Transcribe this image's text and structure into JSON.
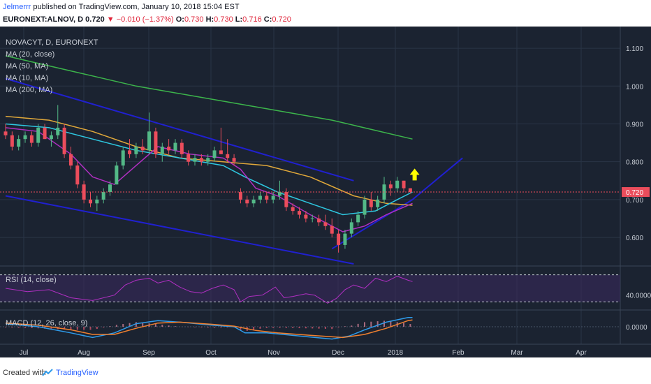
{
  "header": {
    "author": "Jelmerrr",
    "published_text": "published on TradingView.com, January 10, 2018 15:04 EST",
    "symbol_line": "EURONEXT:ALNOV, D",
    "price": "0.720",
    "change": "−0.010 (−1.37%)",
    "ohlc": {
      "o_label": "O:",
      "o": "0.730",
      "h_label": "H:",
      "h": "0.730",
      "l_label": "L:",
      "l": "0.716",
      "c_label": "C:",
      "c": "0.720"
    }
  },
  "legend": {
    "title": "NOVACYT, D, EURONEXT",
    "items": [
      "MA (20, close)",
      "MA (50, MA)",
      "MA (10, MA)",
      "MA (200, MA)"
    ]
  },
  "rsi_label": "RSI (14, close)",
  "macd_label": "MACD (12, 26, close, 9)",
  "footer": {
    "created": "Created with",
    "brand": "TradingView"
  },
  "colors": {
    "bg": "#1b2331",
    "grid": "#2a3446",
    "up": "#53b987",
    "down": "#eb4d5c",
    "ma20": "#2ec7e0",
    "ma50": "#e0a83a",
    "ma10": "#b02fc2",
    "ma200": "#3cb44b",
    "channel": "#2020d0",
    "arrow": "#ffff00",
    "rsi": "#b02fc2",
    "macd": "#2e9bea",
    "signal": "#f08030"
  },
  "chart_data": [
    {
      "type": "candlestick",
      "title": "NOVACYT, D, EURONEXT",
      "x_labels": [
        "Jul",
        "Aug",
        "Sep",
        "Oct",
        "Nov",
        "Dec",
        "2018",
        "Feb",
        "Mar",
        "Apr"
      ],
      "y_ticks": [
        "1.100",
        "1.000",
        "0.900",
        "0.800",
        "0.700",
        "0.600"
      ],
      "ylim": [
        0.53,
        1.15
      ],
      "last_price_label": "0.720",
      "last_price": 0.72,
      "candles": [
        {
          "d": 0,
          "o": 0.88,
          "h": 0.9,
          "l": 0.86,
          "c": 0.87
        },
        {
          "d": 3,
          "o": 0.87,
          "h": 0.88,
          "l": 0.83,
          "c": 0.84
        },
        {
          "d": 6,
          "o": 0.84,
          "h": 0.87,
          "l": 0.83,
          "c": 0.86
        },
        {
          "d": 9,
          "o": 0.86,
          "h": 0.88,
          "l": 0.85,
          "c": 0.87
        },
        {
          "d": 12,
          "o": 0.87,
          "h": 0.88,
          "l": 0.84,
          "c": 0.85
        },
        {
          "d": 15,
          "o": 0.85,
          "h": 0.9,
          "l": 0.84,
          "c": 0.89
        },
        {
          "d": 18,
          "o": 0.89,
          "h": 0.9,
          "l": 0.86,
          "c": 0.86
        },
        {
          "d": 21,
          "o": 0.86,
          "h": 0.88,
          "l": 0.84,
          "c": 0.87
        },
        {
          "d": 24,
          "o": 0.87,
          "h": 0.95,
          "l": 0.86,
          "c": 0.89
        },
        {
          "d": 27,
          "o": 0.89,
          "h": 0.9,
          "l": 0.81,
          "c": 0.82
        },
        {
          "d": 30,
          "o": 0.82,
          "h": 0.84,
          "l": 0.78,
          "c": 0.79
        },
        {
          "d": 33,
          "o": 0.79,
          "h": 0.8,
          "l": 0.73,
          "c": 0.74
        },
        {
          "d": 36,
          "o": 0.74,
          "h": 0.75,
          "l": 0.69,
          "c": 0.7
        },
        {
          "d": 39,
          "o": 0.7,
          "h": 0.72,
          "l": 0.68,
          "c": 0.69
        },
        {
          "d": 42,
          "o": 0.69,
          "h": 0.71,
          "l": 0.67,
          "c": 0.7
        },
        {
          "d": 45,
          "o": 0.7,
          "h": 0.73,
          "l": 0.69,
          "c": 0.72
        },
        {
          "d": 48,
          "o": 0.72,
          "h": 0.75,
          "l": 0.71,
          "c": 0.74
        },
        {
          "d": 51,
          "o": 0.74,
          "h": 0.8,
          "l": 0.74,
          "c": 0.79
        },
        {
          "d": 54,
          "o": 0.79,
          "h": 0.84,
          "l": 0.78,
          "c": 0.83
        },
        {
          "d": 57,
          "o": 0.83,
          "h": 0.86,
          "l": 0.81,
          "c": 0.82
        },
        {
          "d": 60,
          "o": 0.82,
          "h": 0.85,
          "l": 0.81,
          "c": 0.84
        },
        {
          "d": 63,
          "o": 0.84,
          "h": 0.86,
          "l": 0.82,
          "c": 0.83
        },
        {
          "d": 66,
          "o": 0.83,
          "h": 0.93,
          "l": 0.82,
          "c": 0.88
        },
        {
          "d": 69,
          "o": 0.88,
          "h": 0.89,
          "l": 0.81,
          "c": 0.82
        },
        {
          "d": 72,
          "o": 0.82,
          "h": 0.85,
          "l": 0.8,
          "c": 0.84
        },
        {
          "d": 75,
          "o": 0.84,
          "h": 0.86,
          "l": 0.82,
          "c": 0.83
        },
        {
          "d": 78,
          "o": 0.83,
          "h": 0.86,
          "l": 0.82,
          "c": 0.85
        },
        {
          "d": 81,
          "o": 0.85,
          "h": 0.86,
          "l": 0.81,
          "c": 0.82
        },
        {
          "d": 84,
          "o": 0.82,
          "h": 0.83,
          "l": 0.79,
          "c": 0.8
        },
        {
          "d": 87,
          "o": 0.8,
          "h": 0.82,
          "l": 0.79,
          "c": 0.81
        },
        {
          "d": 90,
          "o": 0.81,
          "h": 0.82,
          "l": 0.79,
          "c": 0.8
        },
        {
          "d": 93,
          "o": 0.8,
          "h": 0.82,
          "l": 0.79,
          "c": 0.81
        },
        {
          "d": 96,
          "o": 0.81,
          "h": 0.84,
          "l": 0.8,
          "c": 0.83
        },
        {
          "d": 99,
          "o": 0.83,
          "h": 0.89,
          "l": 0.82,
          "c": 0.82
        },
        {
          "d": 102,
          "o": 0.82,
          "h": 0.86,
          "l": 0.8,
          "c": 0.81
        },
        {
          "d": 105,
          "o": 0.81,
          "h": 0.82,
          "l": 0.79,
          "c": 0.8
        },
        {
          "d": 108,
          "o": 0.72,
          "h": 0.73,
          "l": 0.69,
          "c": 0.7
        },
        {
          "d": 111,
          "o": 0.7,
          "h": 0.71,
          "l": 0.68,
          "c": 0.69
        },
        {
          "d": 114,
          "o": 0.69,
          "h": 0.71,
          "l": 0.68,
          "c": 0.7
        },
        {
          "d": 117,
          "o": 0.7,
          "h": 0.72,
          "l": 0.69,
          "c": 0.71
        },
        {
          "d": 120,
          "o": 0.71,
          "h": 0.72,
          "l": 0.69,
          "c": 0.7
        },
        {
          "d": 123,
          "o": 0.7,
          "h": 0.72,
          "l": 0.69,
          "c": 0.71
        },
        {
          "d": 126,
          "o": 0.71,
          "h": 0.75,
          "l": 0.7,
          "c": 0.72
        },
        {
          "d": 129,
          "o": 0.72,
          "h": 0.73,
          "l": 0.67,
          "c": 0.68
        },
        {
          "d": 132,
          "o": 0.68,
          "h": 0.69,
          "l": 0.66,
          "c": 0.67
        },
        {
          "d": 135,
          "o": 0.67,
          "h": 0.68,
          "l": 0.65,
          "c": 0.66
        },
        {
          "d": 138,
          "o": 0.66,
          "h": 0.67,
          "l": 0.64,
          "c": 0.65
        },
        {
          "d": 141,
          "o": 0.65,
          "h": 0.66,
          "l": 0.64,
          "c": 0.65
        },
        {
          "d": 144,
          "o": 0.65,
          "h": 0.66,
          "l": 0.63,
          "c": 0.64
        },
        {
          "d": 147,
          "o": 0.64,
          "h": 0.66,
          "l": 0.62,
          "c": 0.63
        },
        {
          "d": 150,
          "o": 0.63,
          "h": 0.65,
          "l": 0.6,
          "c": 0.61
        },
        {
          "d": 153,
          "o": 0.61,
          "h": 0.62,
          "l": 0.56,
          "c": 0.58
        },
        {
          "d": 156,
          "o": 0.58,
          "h": 0.62,
          "l": 0.57,
          "c": 0.61
        },
        {
          "d": 159,
          "o": 0.61,
          "h": 0.65,
          "l": 0.6,
          "c": 0.64
        },
        {
          "d": 162,
          "o": 0.64,
          "h": 0.67,
          "l": 0.63,
          "c": 0.66
        },
        {
          "d": 165,
          "o": 0.66,
          "h": 0.71,
          "l": 0.65,
          "c": 0.7
        },
        {
          "d": 168,
          "o": 0.7,
          "h": 0.72,
          "l": 0.67,
          "c": 0.68
        },
        {
          "d": 171,
          "o": 0.68,
          "h": 0.71,
          "l": 0.67,
          "c": 0.7
        },
        {
          "d": 174,
          "o": 0.7,
          "h": 0.76,
          "l": 0.69,
          "c": 0.74
        },
        {
          "d": 177,
          "o": 0.74,
          "h": 0.75,
          "l": 0.71,
          "c": 0.73
        },
        {
          "d": 180,
          "o": 0.73,
          "h": 0.76,
          "l": 0.72,
          "c": 0.75
        },
        {
          "d": 183,
          "o": 0.75,
          "h": 0.75,
          "l": 0.72,
          "c": 0.73
        },
        {
          "d": 186,
          "o": 0.73,
          "h": 0.73,
          "l": 0.716,
          "c": 0.72
        }
      ],
      "ma20": [
        [
          0,
          0.9
        ],
        [
          20,
          0.89
        ],
        [
          40,
          0.86
        ],
        [
          60,
          0.83
        ],
        [
          80,
          0.81
        ],
        [
          100,
          0.79
        ],
        [
          110,
          0.76
        ],
        [
          125,
          0.72
        ],
        [
          140,
          0.69
        ],
        [
          155,
          0.66
        ],
        [
          170,
          0.67
        ],
        [
          180,
          0.7
        ],
        [
          187,
          0.72
        ]
      ],
      "ma50": [
        [
          0,
          0.92
        ],
        [
          20,
          0.91
        ],
        [
          40,
          0.88
        ],
        [
          60,
          0.84
        ],
        [
          80,
          0.81
        ],
        [
          100,
          0.8
        ],
        [
          120,
          0.79
        ],
        [
          140,
          0.76
        ],
        [
          160,
          0.71
        ],
        [
          175,
          0.69
        ],
        [
          187,
          0.685
        ]
      ],
      "ma10": [
        [
          0,
          0.89
        ],
        [
          15,
          0.88
        ],
        [
          30,
          0.82
        ],
        [
          40,
          0.76
        ],
        [
          50,
          0.74
        ],
        [
          60,
          0.79
        ],
        [
          70,
          0.84
        ],
        [
          85,
          0.82
        ],
        [
          100,
          0.81
        ],
        [
          108,
          0.78
        ],
        [
          115,
          0.73
        ],
        [
          125,
          0.71
        ],
        [
          140,
          0.66
        ],
        [
          150,
          0.63
        ],
        [
          155,
          0.615
        ],
        [
          165,
          0.63
        ],
        [
          175,
          0.66
        ],
        [
          187,
          0.69
        ]
      ],
      "ma200": [
        [
          0,
          1.08
        ],
        [
          30,
          1.04
        ],
        [
          60,
          1.0
        ],
        [
          90,
          0.97
        ],
        [
          120,
          0.94
        ],
        [
          150,
          0.91
        ],
        [
          187,
          0.86
        ]
      ],
      "channel_upper": [
        [
          0,
          1.02
        ],
        [
          160,
          0.75
        ]
      ],
      "channel_lower": [
        [
          0,
          0.71
        ],
        [
          160,
          0.53
        ]
      ],
      "trend_support": [
        [
          150,
          0.57
        ],
        [
          187,
          0.7
        ],
        [
          210,
          0.81
        ]
      ]
    },
    {
      "type": "line",
      "name": "RSI (14, close)",
      "y_ticks": [
        "40.0000"
      ],
      "ylim": [
        20,
        80
      ],
      "bands": [
        30,
        70
      ],
      "values": [
        [
          0,
          50
        ],
        [
          10,
          45
        ],
        [
          20,
          48
        ],
        [
          30,
          36
        ],
        [
          40,
          32
        ],
        [
          50,
          40
        ],
        [
          55,
          55
        ],
        [
          60,
          62
        ],
        [
          66,
          65
        ],
        [
          70,
          58
        ],
        [
          75,
          62
        ],
        [
          80,
          52
        ],
        [
          85,
          45
        ],
        [
          90,
          43
        ],
        [
          95,
          50
        ],
        [
          100,
          55
        ],
        [
          105,
          48
        ],
        [
          108,
          30
        ],
        [
          112,
          38
        ],
        [
          118,
          40
        ],
        [
          124,
          52
        ],
        [
          128,
          36
        ],
        [
          132,
          38
        ],
        [
          138,
          42
        ],
        [
          142,
          40
        ],
        [
          148,
          28
        ],
        [
          152,
          35
        ],
        [
          156,
          48
        ],
        [
          160,
          55
        ],
        [
          165,
          50
        ],
        [
          170,
          65
        ],
        [
          175,
          60
        ],
        [
          180,
          68
        ],
        [
          185,
          62
        ],
        [
          187,
          60
        ]
      ]
    },
    {
      "type": "line",
      "name": "MACD (12, 26, close, 9)",
      "y_ticks": [
        "0.0000"
      ],
      "ylim": [
        -0.05,
        0.05
      ],
      "macd": [
        [
          0,
          0.01
        ],
        [
          15,
          0.0
        ],
        [
          30,
          -0.02
        ],
        [
          40,
          -0.035
        ],
        [
          50,
          -0.02
        ],
        [
          60,
          0.01
        ],
        [
          70,
          0.02
        ],
        [
          80,
          0.015
        ],
        [
          95,
          0.005
        ],
        [
          105,
          0.0
        ],
        [
          110,
          -0.02
        ],
        [
          120,
          -0.02
        ],
        [
          135,
          -0.03
        ],
        [
          150,
          -0.04
        ],
        [
          158,
          -0.03
        ],
        [
          165,
          -0.01
        ],
        [
          175,
          0.015
        ],
        [
          185,
          0.03
        ],
        [
          187,
          0.03
        ]
      ],
      "signal": [
        [
          0,
          0.012
        ],
        [
          15,
          0.005
        ],
        [
          30,
          -0.01
        ],
        [
          40,
          -0.025
        ],
        [
          50,
          -0.025
        ],
        [
          60,
          -0.005
        ],
        [
          70,
          0.012
        ],
        [
          80,
          0.015
        ],
        [
          95,
          0.008
        ],
        [
          105,
          0.002
        ],
        [
          115,
          -0.012
        ],
        [
          125,
          -0.02
        ],
        [
          140,
          -0.028
        ],
        [
          155,
          -0.035
        ],
        [
          165,
          -0.025
        ],
        [
          175,
          -0.005
        ],
        [
          185,
          0.02
        ],
        [
          187,
          0.022
        ]
      ]
    }
  ]
}
